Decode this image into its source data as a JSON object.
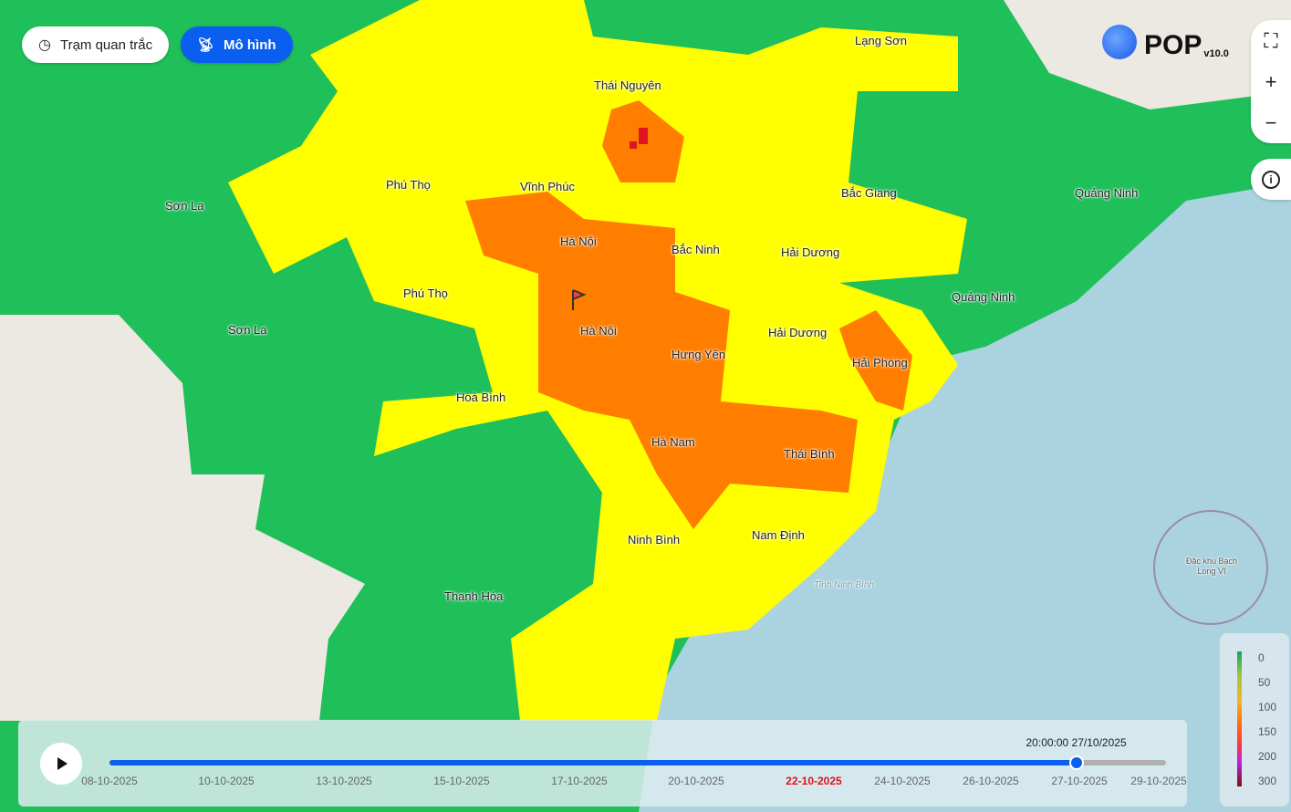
{
  "toolbar": {
    "station_label": "Trạm quan trắc",
    "model_label": "Mô hình"
  },
  "logo": {
    "name": "POP",
    "version": "v10.0"
  },
  "places": [
    "Lạng Sơn",
    "Thái Nguyên",
    "Phú Thọ",
    "Vĩnh Phúc",
    "Bắc Giang",
    "Quảng Ninh",
    "Sơn La",
    "Hà Nội",
    "Bắc Ninh",
    "Hải Dương",
    "Phú Thọ",
    "Quảng Ninh",
    "Sơn La",
    "Hà Nội",
    "Hưng Yên",
    "Hải Dương",
    "Hải Phòng",
    "Hoà Bình",
    "Hà Nam",
    "Thái Bình",
    "Ninh Bình",
    "Nam Định",
    "Thanh Hóa",
    "Tĩnh Ninh Bình",
    "Đặc khu Bạch Long Vĩ"
  ],
  "legend": {
    "values": [
      "0",
      "50",
      "100",
      "150",
      "200",
      "300"
    ]
  },
  "timeline": {
    "current": "20:00:00 27/10/2025",
    "progress": 0.915,
    "ticks": [
      "08-10-2025",
      "10-10-2025",
      "13-10-2025",
      "15-10-2025",
      "17-10-2025",
      "20-10-2025",
      "22-10-2025",
      "24-10-2025",
      "26-10-2025",
      "27-10-2025",
      "29-10-2025"
    ],
    "today_index": 6
  },
  "colors": {
    "accent": "#0a5ef0",
    "good": "#1fbf5a",
    "moderate": "#ffff00",
    "unhealthy_sensitive": "#ff7e00",
    "unhealthy": "#e0141e"
  }
}
